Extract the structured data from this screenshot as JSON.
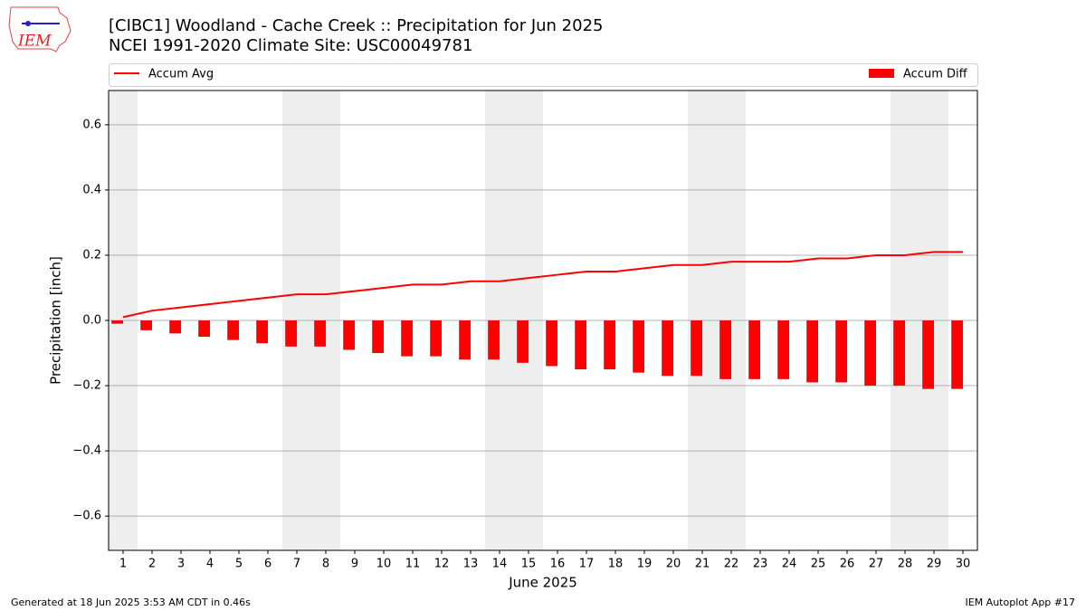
{
  "logo_text": "IEM",
  "footer_left": "Generated at 18 Jun 2025 3:53 AM CDT in 0.46s",
  "footer_right": "IEM Autoplot App #17",
  "chart_data": {
    "type": "bar-line",
    "title": "[CIBC1] Woodland - Cache Creek :: Precipitation for Jun 2025",
    "subtitle": "NCEI 1991-2020 Climate Site: USC00049781",
    "xlabel": "June 2025",
    "ylabel": "Precipitation [inch]",
    "x": [
      1,
      2,
      3,
      4,
      5,
      6,
      7,
      8,
      9,
      10,
      11,
      12,
      13,
      14,
      15,
      16,
      17,
      18,
      19,
      20,
      21,
      22,
      23,
      24,
      25,
      26,
      27,
      28,
      29,
      30
    ],
    "xlim": [
      0.5,
      30.5
    ],
    "xticks": [
      1,
      2,
      3,
      4,
      5,
      6,
      7,
      8,
      9,
      10,
      11,
      12,
      13,
      14,
      15,
      16,
      17,
      18,
      19,
      20,
      21,
      22,
      23,
      24,
      25,
      26,
      27,
      28,
      29,
      30
    ],
    "ylim": [
      -0.705,
      0.705
    ],
    "yticks": [
      {
        "value": -0.6,
        "label": "−0.6"
      },
      {
        "value": -0.4,
        "label": "−0.4"
      },
      {
        "value": -0.2,
        "label": "−0.2"
      },
      {
        "value": 0,
        "label": "0.0"
      },
      0.2,
      0.4,
      0.6
    ],
    "grid": true,
    "shaded_x": [
      1,
      7,
      8,
      14,
      15,
      21,
      22,
      28,
      29
    ],
    "shade_color": "#eeeeee",
    "series": [
      {
        "name": "Accum Avg",
        "kind": "line",
        "color": "#ff0000",
        "values": [
          0.01,
          0.03,
          0.04,
          0.05,
          0.06,
          0.07,
          0.08,
          0.08,
          0.09,
          0.1,
          0.11,
          0.11,
          0.12,
          0.12,
          0.13,
          0.14,
          0.15,
          0.15,
          0.16,
          0.17,
          0.17,
          0.18,
          0.18,
          0.18,
          0.19,
          0.19,
          0.2,
          0.2,
          0.21,
          0.21
        ]
      },
      {
        "name": "Accum Diff",
        "kind": "bar",
        "color": "#ff0000",
        "values": [
          -0.01,
          -0.03,
          -0.04,
          -0.05,
          -0.06,
          -0.07,
          -0.08,
          -0.08,
          -0.09,
          -0.1,
          -0.11,
          -0.11,
          -0.12,
          -0.12,
          -0.13,
          -0.14,
          -0.15,
          -0.15,
          -0.16,
          -0.17,
          -0.17,
          -0.18,
          -0.18,
          -0.18,
          -0.19,
          -0.19,
          -0.2,
          -0.2,
          -0.21,
          -0.21
        ]
      }
    ]
  }
}
